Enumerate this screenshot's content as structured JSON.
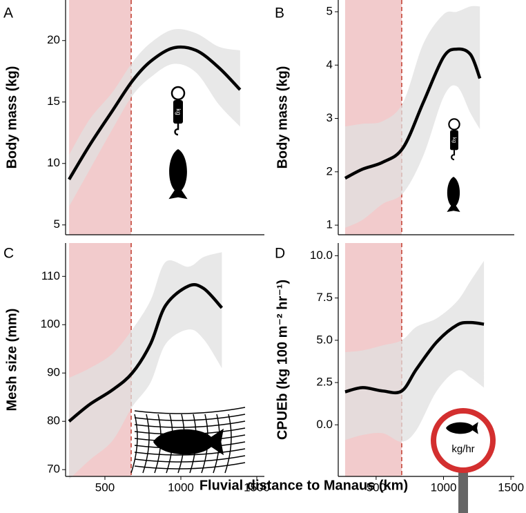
{
  "chart_data": [
    {
      "type": "line",
      "title": "A",
      "ylabel": "Body mass (kg)",
      "icon_label": "kg",
      "x": [
        264,
        400,
        550,
        680,
        800,
        950,
        1100,
        1250,
        1390
      ],
      "values": [
        8.7,
        11.5,
        14.3,
        16.7,
        18.3,
        19.4,
        19.2,
        17.8,
        16.0
      ],
      "band_lower": [
        6.5,
        9.5,
        12.8,
        15.5,
        17.0,
        18.1,
        17.4,
        14.8,
        13.0
      ],
      "band_upper": [
        10.7,
        13.6,
        15.8,
        18.2,
        19.8,
        20.9,
        20.6,
        19.5,
        19.2
      ],
      "color": "#000000",
      "band_color": "#e0e0e0",
      "highlight_range": [
        264,
        673
      ],
      "highlight_color": "#f0c2c3",
      "xlim": [
        241,
        1550
      ],
      "ylim": [
        4.2,
        23.3
      ],
      "yticks": [
        5,
        10,
        15,
        20
      ]
    },
    {
      "type": "line",
      "title": "B",
      "ylabel": "Body mass (kg)",
      "icon_label": "kg",
      "x": [
        270,
        400,
        550,
        700,
        850,
        1000,
        1100,
        1200,
        1270
      ],
      "values": [
        1.88,
        2.05,
        2.18,
        2.45,
        3.3,
        4.15,
        4.3,
        4.2,
        3.75
      ],
      "band_lower": [
        0.95,
        1.1,
        1.4,
        1.6,
        2.3,
        3.4,
        3.6,
        3.1,
        2.8
      ],
      "band_upper": [
        2.85,
        2.9,
        2.95,
        3.3,
        4.4,
        4.95,
        5.0,
        5.1,
        5.1
      ],
      "color": "#000000",
      "band_color": "#e0e0e0",
      "highlight_range": [
        270,
        690
      ],
      "highlight_color": "#f0c2c3",
      "xlim": [
        219,
        1525
      ],
      "ylim": [
        0.82,
        5.22
      ],
      "yticks": [
        1,
        2,
        3,
        4,
        5
      ]
    },
    {
      "type": "line",
      "title": "C",
      "ylabel": "Mesh size (mm)",
      "x": [
        264,
        400,
        550,
        680,
        800,
        900,
        1050,
        1150,
        1270
      ],
      "values": [
        80,
        83.5,
        86.5,
        90,
        96,
        104,
        108,
        107.5,
        103.5
      ],
      "band_lower": [
        68,
        72,
        76,
        83,
        88,
        96,
        99,
        97,
        91
      ],
      "band_upper": [
        89,
        91,
        94,
        99,
        105,
        113,
        112,
        114,
        115
      ],
      "color": "#000000",
      "band_color": "#e0e0e0",
      "highlight_range": [
        264,
        673
      ],
      "highlight_color": "#f0c2c3",
      "xlim": [
        241,
        1550
      ],
      "ylim": [
        68.6,
        116.9
      ],
      "yticks": [
        70,
        80,
        90,
        100,
        110
      ],
      "xticks": [
        500,
        1000,
        1500
      ]
    },
    {
      "type": "line",
      "title": "D",
      "ylabel": "CPUEb (kg 100 m⁻² hr⁻¹)",
      "icon_label": "kg/hr",
      "x": [
        270,
        400,
        550,
        690,
        800,
        950,
        1100,
        1200,
        1300
      ],
      "values": [
        1.95,
        2.2,
        2.0,
        2.0,
        3.3,
        4.9,
        5.9,
        6.05,
        5.95
      ],
      "band_lower": [
        -0.9,
        -0.6,
        -0.5,
        -1.0,
        -0.3,
        2.0,
        3.2,
        2.8,
        2.2
      ],
      "band_upper": [
        4.3,
        4.4,
        4.7,
        5.0,
        5.8,
        6.3,
        7.3,
        8.5,
        9.7
      ],
      "color": "#000000",
      "band_color": "#e0e0e0",
      "highlight_range": [
        270,
        690
      ],
      "highlight_color": "#f0c2c3",
      "xlim": [
        219,
        1525
      ],
      "ylim": [
        -3.05,
        10.75
      ],
      "yticks": [
        {
          "value": 0,
          "label": "0.0"
        },
        2.5,
        {
          "value": 5,
          "label": "5.0"
        },
        7.5,
        {
          "value": 10,
          "label": "10.0"
        }
      ],
      "xticks": [
        500,
        1000,
        1500
      ]
    }
  ],
  "xlabel": "Fluvial distance to Manaus (km)"
}
